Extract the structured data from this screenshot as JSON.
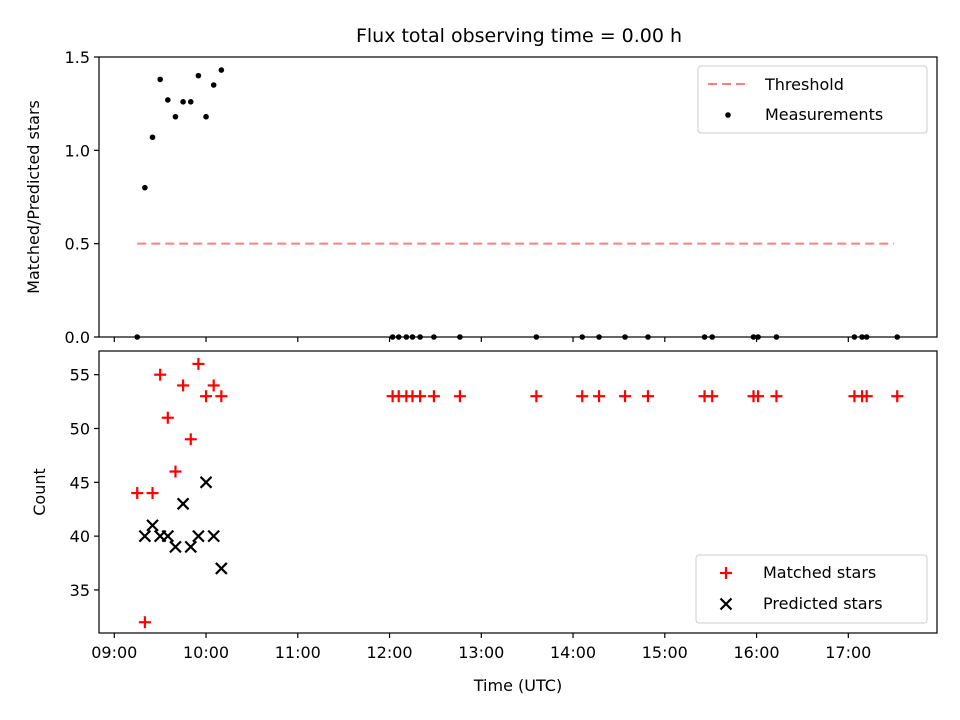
{
  "chart_data": [
    {
      "type": "scatter",
      "title": "Flux total observing time = 0.00 h",
      "xlabel": "",
      "ylabel": "Matched/Predicted stars",
      "xlim": [
        "08:50",
        "17:58"
      ],
      "ylim": [
        0,
        1.5
      ],
      "yticks": [
        "0.0",
        "0.5",
        "1.0",
        "1.5"
      ],
      "grid": false,
      "legend_position": "top-right",
      "threshold": {
        "name": "Threshold",
        "value": 0.5,
        "x_start": "09:15",
        "x_end": "17:30",
        "color": "#ff7f7f",
        "style": "dashed"
      },
      "series": [
        {
          "name": "Measurements",
          "color": "#000000",
          "marker": "dot",
          "points": [
            {
              "x": "09:15",
              "y": 0.0
            },
            {
              "x": "09:20",
              "y": 0.8
            },
            {
              "x": "09:25",
              "y": 1.07
            },
            {
              "x": "09:30",
              "y": 1.38
            },
            {
              "x": "09:35",
              "y": 1.27
            },
            {
              "x": "09:40",
              "y": 1.18
            },
            {
              "x": "09:45",
              "y": 1.26
            },
            {
              "x": "09:50",
              "y": 1.26
            },
            {
              "x": "09:55",
              "y": 1.4
            },
            {
              "x": "10:00",
              "y": 1.18
            },
            {
              "x": "10:05",
              "y": 1.35
            },
            {
              "x": "10:10",
              "y": 1.43
            },
            {
              "x": "12:02",
              "y": 0.0
            },
            {
              "x": "12:06",
              "y": 0.0
            },
            {
              "x": "12:11",
              "y": 0.0
            },
            {
              "x": "12:15",
              "y": 0.0
            },
            {
              "x": "12:20",
              "y": 0.0
            },
            {
              "x": "12:29",
              "y": 0.0
            },
            {
              "x": "12:46",
              "y": 0.0
            },
            {
              "x": "13:36",
              "y": 0.0
            },
            {
              "x": "14:06",
              "y": 0.0
            },
            {
              "x": "14:17",
              "y": 0.0
            },
            {
              "x": "14:34",
              "y": 0.0
            },
            {
              "x": "14:49",
              "y": 0.0
            },
            {
              "x": "15:26",
              "y": 0.0
            },
            {
              "x": "15:31",
              "y": 0.0
            },
            {
              "x": "15:58",
              "y": 0.0
            },
            {
              "x": "16:01",
              "y": 0.0
            },
            {
              "x": "16:13",
              "y": 0.0
            },
            {
              "x": "17:04",
              "y": 0.0
            },
            {
              "x": "17:09",
              "y": 0.0
            },
            {
              "x": "17:12",
              "y": 0.0
            },
            {
              "x": "17:32",
              "y": 0.0
            }
          ]
        }
      ]
    },
    {
      "type": "scatter",
      "title": "",
      "xlabel": "Time (UTC)",
      "ylabel": "Count",
      "xlim": [
        "08:50",
        "17:58"
      ],
      "ylim": [
        31,
        57.2
      ],
      "yticks": [
        "35",
        "40",
        "45",
        "50",
        "55"
      ],
      "xticks": [
        "09:00",
        "10:00",
        "11:00",
        "12:00",
        "13:00",
        "14:00",
        "15:00",
        "16:00",
        "17:00"
      ],
      "grid": false,
      "legend_position": "bottom-right",
      "series": [
        {
          "name": "Matched stars",
          "color": "#ff0000",
          "marker": "plus",
          "points": [
            {
              "x": "09:15",
              "y": 44
            },
            {
              "x": "09:20",
              "y": 32
            },
            {
              "x": "09:25",
              "y": 44
            },
            {
              "x": "09:30",
              "y": 55
            },
            {
              "x": "09:35",
              "y": 51
            },
            {
              "x": "09:40",
              "y": 46
            },
            {
              "x": "09:45",
              "y": 54
            },
            {
              "x": "09:50",
              "y": 49
            },
            {
              "x": "09:55",
              "y": 56
            },
            {
              "x": "10:00",
              "y": 53
            },
            {
              "x": "10:05",
              "y": 54
            },
            {
              "x": "10:10",
              "y": 53
            },
            {
              "x": "12:02",
              "y": 53
            },
            {
              "x": "12:06",
              "y": 53
            },
            {
              "x": "12:11",
              "y": 53
            },
            {
              "x": "12:15",
              "y": 53
            },
            {
              "x": "12:20",
              "y": 53
            },
            {
              "x": "12:29",
              "y": 53
            },
            {
              "x": "12:46",
              "y": 53
            },
            {
              "x": "13:36",
              "y": 53
            },
            {
              "x": "14:06",
              "y": 53
            },
            {
              "x": "14:17",
              "y": 53
            },
            {
              "x": "14:34",
              "y": 53
            },
            {
              "x": "14:49",
              "y": 53
            },
            {
              "x": "15:26",
              "y": 53
            },
            {
              "x": "15:31",
              "y": 53
            },
            {
              "x": "15:58",
              "y": 53
            },
            {
              "x": "16:01",
              "y": 53
            },
            {
              "x": "16:13",
              "y": 53
            },
            {
              "x": "17:04",
              "y": 53
            },
            {
              "x": "17:09",
              "y": 53
            },
            {
              "x": "17:12",
              "y": 53
            },
            {
              "x": "17:32",
              "y": 53
            }
          ]
        },
        {
          "name": "Predicted stars",
          "color": "#000000",
          "marker": "x",
          "points": [
            {
              "x": "09:20",
              "y": 40
            },
            {
              "x": "09:25",
              "y": 41
            },
            {
              "x": "09:30",
              "y": 40
            },
            {
              "x": "09:35",
              "y": 40
            },
            {
              "x": "09:40",
              "y": 39
            },
            {
              "x": "09:45",
              "y": 43
            },
            {
              "x": "09:50",
              "y": 39
            },
            {
              "x": "09:55",
              "y": 40
            },
            {
              "x": "10:00",
              "y": 45
            },
            {
              "x": "10:05",
              "y": 40
            },
            {
              "x": "10:10",
              "y": 37
            }
          ]
        }
      ]
    }
  ]
}
